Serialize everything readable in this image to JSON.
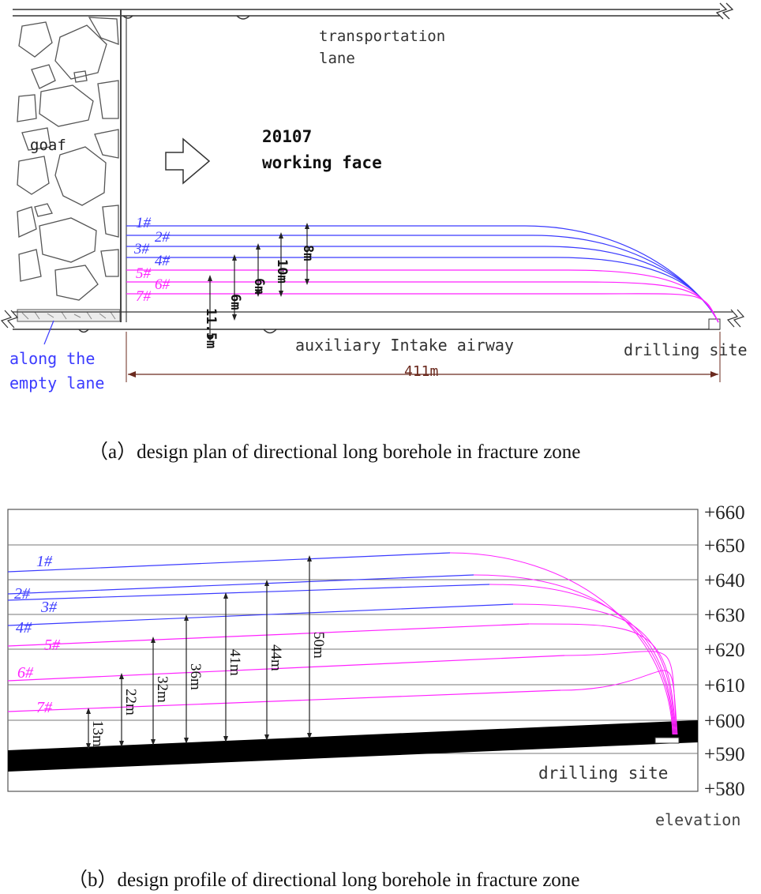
{
  "plan": {
    "caption": "（a）design plan of directional long borehole in fracture zone",
    "label_goaf": "goaf",
    "label_transport_1": "transportation",
    "label_transport_2": "lane",
    "label_face_1": "20107",
    "label_face_2": "working face",
    "label_airway": "auxiliary Intake airway",
    "label_drilling_site": "drilling site",
    "label_empty_1": "along the",
    "label_empty_2": "empty lane",
    "length_label": "411m",
    "boreholes": [
      {
        "id": "1#",
        "color": "#3b3bff"
      },
      {
        "id": "2#",
        "color": "#3b3bff"
      },
      {
        "id": "3#",
        "color": "#3b3bff"
      },
      {
        "id": "4#",
        "color": "#3b3bff"
      },
      {
        "id": "5#",
        "color": "#ff22ff"
      },
      {
        "id": "6#",
        "color": "#ff22ff"
      },
      {
        "id": "7#",
        "color": "#ff22ff"
      }
    ],
    "spacings": [
      "11.5m",
      "6m",
      "6m",
      "10m",
      "8m"
    ]
  },
  "profile": {
    "caption": "（b）design profile of directional long borehole in fracture zone",
    "elevations": [
      "+660",
      "+650",
      "+640",
      "+630",
      "+620",
      "+610",
      "+600",
      "+590",
      "+580"
    ],
    "elevation_label": "elevation",
    "label_drilling_site": "drilling site",
    "boreholes": [
      {
        "id": "1#",
        "color": "#3b3bff"
      },
      {
        "id": "2#",
        "color": "#3b3bff"
      },
      {
        "id": "3#",
        "color": "#3b3bff"
      },
      {
        "id": "4#",
        "color": "#3b3bff"
      },
      {
        "id": "5#",
        "color": "#ff22ff"
      },
      {
        "id": "6#",
        "color": "#ff22ff"
      },
      {
        "id": "7#",
        "color": "#ff22ff"
      }
    ],
    "heights": [
      "13m",
      "22m",
      "32m",
      "36m",
      "41m",
      "44m",
      "50m"
    ]
  },
  "colors": {
    "blue": "#3b3bff",
    "magenta": "#ff22ff",
    "dim": "#6b2a1e",
    "frame": "#333333"
  }
}
